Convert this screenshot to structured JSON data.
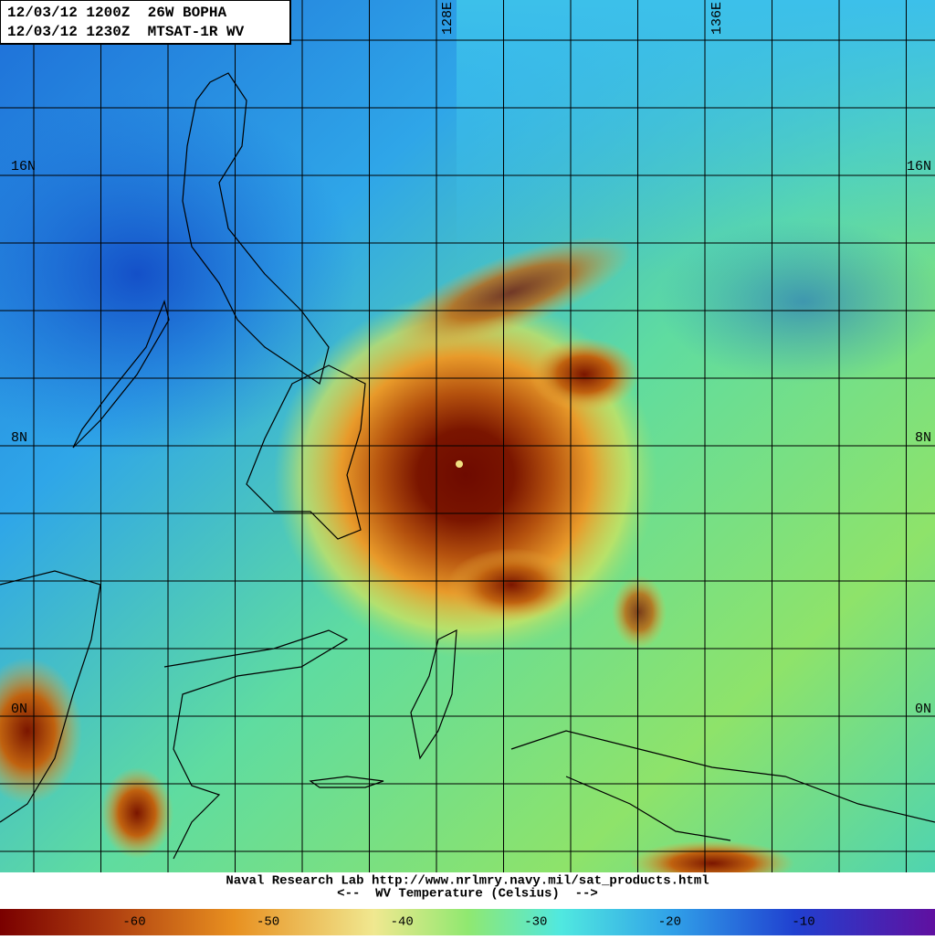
{
  "header": {
    "line1": "12/03/12 1200Z  26W BOPHA",
    "line2": "12/03/12 1230Z  MTSAT-1R WV"
  },
  "grid_labels": {
    "lon": [
      "128E",
      "136E"
    ],
    "lat_left": [
      "16N",
      "8N",
      "0N"
    ],
    "lat_right": [
      "16N",
      "8N",
      "0N"
    ]
  },
  "footer": {
    "credit": "Naval Research Lab http://www.nrlmry.navy.mil/sat_products.html",
    "legend_title": "<--  WV Temperature (Celsius)  -->"
  },
  "colorbar": {
    "ticks": [
      -60,
      -50,
      -40,
      -30,
      -20,
      -10
    ]
  }
}
